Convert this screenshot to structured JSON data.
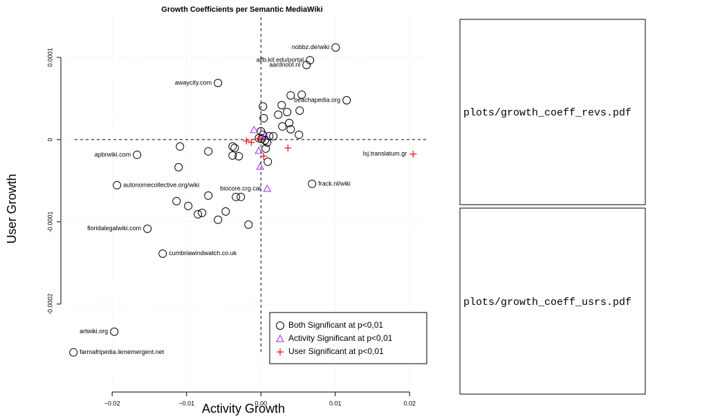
{
  "chart_data": {
    "type": "scatter",
    "title": "Growth Coefficients per Semantic MediaWiki",
    "x_label": "Activity Growth",
    "y_label": "User Growth",
    "xlim": [
      -0.0269,
      0.0223
    ],
    "ylim": [
      -0.000307,
      0.000153
    ],
    "xticks": [
      {
        "value": -0.02,
        "label": "−0.02"
      },
      {
        "value": -0.01,
        "label": "−0.01"
      },
      {
        "value": 0,
        "label": "0.00"
      },
      0.01,
      0.02
    ],
    "yticks": [
      0.0001,
      0,
      -0.0001,
      -0.0002
    ],
    "grid": true,
    "hlines": [
      0
    ],
    "vlines": [
      0
    ],
    "legend": "bottom-right",
    "series": [
      {
        "name": "Both Significant at p<0,01",
        "marker": "circle",
        "color": "#000000",
        "x": [
          0.01005,
          0.0066,
          0.00614,
          -0.00577,
          0.01153,
          -0.01665,
          -0.01935,
          0.00688,
          -0.01526,
          -0.01321,
          -0.01972,
          -0.02521,
          0.00028,
          0.00037,
          0.00233,
          0.00279,
          0.004,
          0.00549,
          0.00521,
          0.00353,
          0.00381,
          0.00288,
          0.004,
          0.00112,
          0.00167,
          0,
          0.00028,
          0.00056,
          0.00084,
          9e-05,
          -0.00028,
          0.00065,
          0.00093,
          0.00512,
          -0.01088,
          -0.00707,
          -0.00381,
          -0.00353,
          -0.00381,
          -0.00298,
          -0.01107,
          -0.00335,
          -0.0027,
          -0.00707,
          -0.01135,
          -0.00977,
          -0.00791,
          -0.00847,
          -0.00474,
          -0.00577,
          -0.00167
        ],
        "values": [
          0.000112,
          9.66e-05,
          9.08e-05,
          6.89e-05,
          4.79e-05,
          -1.85e-05,
          -5.55e-05,
          -5.38e-05,
          -0.0001084,
          -0.0001387,
          -0.0002336,
          -0.0002588,
          4.03e-05,
          2.61e-05,
          3.03e-05,
          4.2e-05,
          5.38e-05,
          5.46e-05,
          3.53e-05,
          3.36e-05,
          2.02e-05,
          1.6e-05,
          1.26e-05,
          4.2e-06,
          4.2e-06,
          1.01e-05,
          5.9e-06,
          -8e-07,
          -3.4e-06,
          8e-07,
          1.7e-06,
          -1.09e-05,
          -2.69e-05,
          5.9e-06,
          -8.4e-06,
          -1.43e-05,
          -8.4e-06,
          -1.01e-05,
          -1.93e-05,
          -2.02e-05,
          -3.36e-05,
          -6.97e-05,
          -6.97e-05,
          -6.81e-05,
          -7.48e-05,
          -8.07e-05,
          -8.91e-05,
          -9.08e-05,
          -8.74e-05,
          -9.75e-05,
          -0.0001034
        ],
        "labels": [
          "nobbz.de/wiki",
          "aifb.kit.edu/portal",
          "aardnoot.nl",
          "awaycity.com",
          "beachapedia.org",
          "apbrwiki.com",
          "autonomecollective.org/wiki",
          "frack.nl/wiki",
          "floridalegalwiki.com",
          "cumbriawindwatch.co.uk",
          "artwiki.org",
          "farmafripedia.ikmemergent.net",
          null,
          null,
          null,
          null,
          null,
          null,
          null,
          null,
          null,
          null,
          null,
          null,
          null,
          null,
          null,
          null,
          null,
          null,
          null,
          null,
          null,
          null,
          null,
          null,
          null,
          null,
          null,
          null,
          null,
          null,
          null,
          null,
          null,
          null,
          null,
          null,
          null,
          null,
          null
        ]
      },
      {
        "name": "Activity Significant at p<0,01",
        "marker": "triangle",
        "color": "#a020f0",
        "x": [
          0.00084,
          -0.00093,
          -0.00028,
          -9e-05,
          0.00056
        ],
        "values": [
          -5.97e-05,
          1.18e-05,
          -1.34e-05,
          -3.28e-05,
          5e-06
        ],
        "labels": [
          "biocore.crg.cat",
          null,
          null,
          null,
          null
        ]
      },
      {
        "name": "User Significant at p<0,01",
        "marker": "plus",
        "color": "#ff0000",
        "x": [
          0.02047,
          -0.00195,
          -0.0013,
          0.00037,
          0.00363,
          -0.00028
        ],
        "values": [
          -1.76e-05,
          -1.7e-06,
          -3.4e-06,
          -2.02e-05,
          -1.01e-05,
          8e-07
        ],
        "labels": [
          "lsj.translatum.gr",
          null,
          null,
          null,
          null,
          null
        ]
      }
    ]
  },
  "placeholders": [
    "plots/growth_coeff_revs.pdf",
    "plots/growth_coeff_usrs.pdf"
  ]
}
